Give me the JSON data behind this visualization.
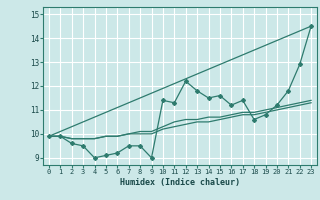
{
  "xlabel": "Humidex (Indice chaleur)",
  "background_color": "#cce8e8",
  "grid_color": "#ffffff",
  "line_color": "#2e7b6e",
  "xlim": [
    -0.5,
    23.5
  ],
  "ylim": [
    8.7,
    15.3
  ],
  "yticks": [
    9,
    10,
    11,
    12,
    13,
    14,
    15
  ],
  "xticks": [
    0,
    1,
    2,
    3,
    4,
    5,
    6,
    7,
    8,
    9,
    10,
    11,
    12,
    13,
    14,
    15,
    16,
    17,
    18,
    19,
    20,
    21,
    22,
    23
  ],
  "series1_x": [
    0,
    1,
    2,
    3,
    4,
    5,
    6,
    7,
    8,
    9,
    10,
    11,
    12,
    13,
    14,
    15,
    16,
    17,
    18,
    19,
    20,
    21,
    22,
    23
  ],
  "series1_y": [
    9.9,
    9.9,
    9.6,
    9.5,
    9.0,
    9.1,
    9.2,
    9.5,
    9.5,
    9.0,
    11.4,
    11.3,
    12.2,
    11.8,
    11.5,
    11.6,
    11.2,
    11.4,
    10.6,
    10.8,
    11.2,
    11.8,
    12.9,
    14.5
  ],
  "series2_x": [
    0,
    1,
    2,
    3,
    4,
    5,
    6,
    7,
    8,
    9,
    10,
    11,
    12,
    13,
    14,
    15,
    16,
    17,
    18,
    19,
    20,
    21,
    22,
    23
  ],
  "series2_y": [
    9.9,
    9.9,
    9.8,
    9.8,
    9.8,
    9.9,
    9.9,
    10.0,
    10.0,
    10.0,
    10.2,
    10.3,
    10.4,
    10.5,
    10.5,
    10.6,
    10.7,
    10.8,
    10.8,
    10.9,
    11.0,
    11.1,
    11.2,
    11.3
  ],
  "series3_x": [
    0,
    1,
    2,
    3,
    4,
    5,
    6,
    7,
    8,
    9,
    10,
    11,
    12,
    13,
    14,
    15,
    16,
    17,
    18,
    19,
    20,
    21,
    22,
    23
  ],
  "series3_y": [
    9.9,
    9.9,
    9.8,
    9.8,
    9.8,
    9.9,
    9.9,
    10.0,
    10.1,
    10.1,
    10.3,
    10.5,
    10.6,
    10.6,
    10.7,
    10.7,
    10.8,
    10.9,
    10.9,
    11.0,
    11.1,
    11.2,
    11.3,
    11.4
  ],
  "series4_x": [
    0,
    23
  ],
  "series4_y": [
    9.9,
    14.5
  ]
}
